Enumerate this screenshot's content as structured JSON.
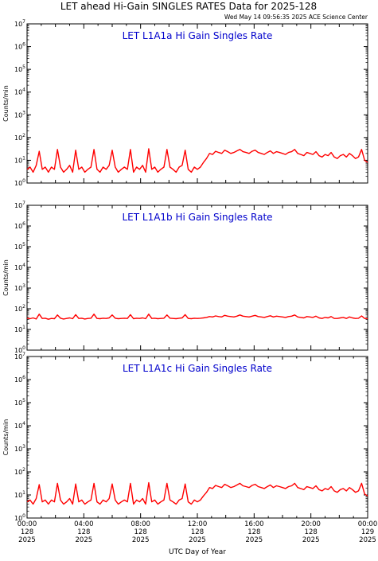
{
  "header": {
    "title": "LET ahead Hi-Gain SINGLES RATES Data for 2025-128",
    "timestamp": "Wed May 14 09:56:35 2025 ACE Science Center"
  },
  "colors": {
    "series": "#ff0000",
    "panel_title": "#0000cc",
    "axes": "#000000"
  },
  "chart_data": [
    {
      "type": "line",
      "title": "LET L1A1a Hi Gain Singles Rate",
      "ylabel": "Counts/min",
      "yscale": "log",
      "ylim": [
        1,
        10000000
      ],
      "xlim": [
        0,
        24
      ],
      "series": [
        {
          "values": [
            4,
            5,
            3,
            6,
            25,
            4,
            5,
            3,
            5,
            4,
            30,
            5,
            3,
            4,
            6,
            3,
            28,
            4,
            5,
            3,
            4,
            5,
            30,
            4,
            3,
            5,
            4,
            6,
            28,
            5,
            3,
            4,
            5,
            4,
            30,
            3,
            5,
            4,
            6,
            3,
            32,
            4,
            5,
            3,
            4,
            5,
            30,
            5,
            4,
            3,
            5,
            6,
            28,
            4,
            3,
            5,
            4,
            5,
            8,
            12,
            20,
            18,
            25,
            22,
            20,
            28,
            24,
            20,
            22,
            26,
            30,
            24,
            22,
            20,
            25,
            28,
            22,
            20,
            18,
            22,
            26,
            20,
            24,
            22,
            20,
            18,
            22,
            24,
            30,
            20,
            18,
            16,
            22,
            20,
            18,
            24,
            16,
            14,
            18,
            16,
            22,
            14,
            12,
            16,
            18,
            14,
            20,
            16,
            12,
            14,
            30,
            10,
            8
          ]
        }
      ]
    },
    {
      "type": "line",
      "title": "LET L1A1b Hi Gain Singles Rate",
      "ylabel": "Counts/min",
      "yscale": "log",
      "ylim": [
        1,
        10000000
      ],
      "xlim": [
        0,
        24
      ],
      "series": [
        {
          "values": [
            35,
            33,
            36,
            32,
            55,
            34,
            35,
            31,
            34,
            33,
            50,
            35,
            32,
            34,
            36,
            33,
            52,
            34,
            35,
            32,
            34,
            35,
            55,
            34,
            33,
            35,
            34,
            36,
            50,
            35,
            33,
            34,
            35,
            34,
            52,
            33,
            35,
            34,
            36,
            33,
            55,
            34,
            35,
            33,
            34,
            35,
            50,
            35,
            34,
            33,
            35,
            36,
            52,
            34,
            33,
            35,
            34,
            35,
            36,
            38,
            42,
            40,
            45,
            42,
            40,
            48,
            44,
            42,
            40,
            44,
            50,
            44,
            42,
            40,
            44,
            48,
            42,
            40,
            38,
            42,
            46,
            40,
            44,
            42,
            40,
            38,
            42,
            44,
            50,
            40,
            38,
            36,
            42,
            40,
            38,
            44,
            36,
            34,
            38,
            36,
            42,
            34,
            34,
            36,
            38,
            34,
            40,
            36,
            34,
            35,
            45,
            34,
            33
          ]
        }
      ]
    },
    {
      "type": "line",
      "title": "LET L1A1c Hi Gain Singles Rate",
      "ylabel": "Counts/min",
      "yscale": "log",
      "ylim": [
        1,
        10000000
      ],
      "xlim": [
        0,
        24
      ],
      "xlabel": "UTC Day of Year",
      "x_ticks": [
        [
          "00:00",
          "128",
          "2025"
        ],
        [
          "04:00",
          "128",
          "2025"
        ],
        [
          "08:00",
          "128",
          "2025"
        ],
        [
          "12:00",
          "128",
          "2025"
        ],
        [
          "16:00",
          "128",
          "2025"
        ],
        [
          "20:00",
          "128",
          "2025"
        ],
        [
          "00:00",
          "129",
          "2025"
        ]
      ],
      "series": [
        {
          "values": [
            5,
            6,
            4,
            7,
            28,
            5,
            6,
            4,
            6,
            5,
            32,
            6,
            4,
            5,
            7,
            4,
            30,
            5,
            6,
            4,
            5,
            6,
            32,
            5,
            4,
            6,
            5,
            7,
            30,
            6,
            4,
            5,
            6,
            5,
            32,
            4,
            6,
            5,
            7,
            4,
            34,
            5,
            6,
            4,
            5,
            6,
            32,
            6,
            5,
            4,
            6,
            7,
            30,
            5,
            4,
            6,
            5,
            6,
            9,
            13,
            21,
            19,
            26,
            23,
            21,
            29,
            25,
            21,
            23,
            27,
            32,
            25,
            23,
            21,
            26,
            29,
            23,
            21,
            19,
            23,
            27,
            21,
            25,
            23,
            21,
            19,
            23,
            25,
            32,
            21,
            19,
            17,
            23,
            21,
            19,
            25,
            17,
            15,
            19,
            17,
            23,
            15,
            13,
            17,
            19,
            15,
            21,
            17,
            13,
            15,
            32,
            11,
            9
          ]
        }
      ]
    }
  ]
}
